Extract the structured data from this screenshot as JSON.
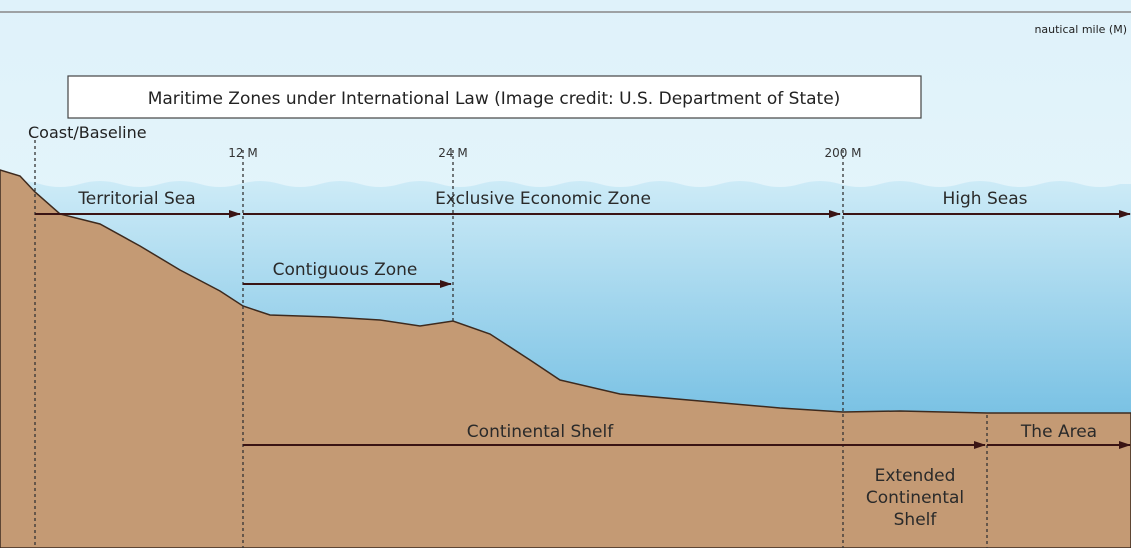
{
  "header": {
    "unit_note": "nautical mile (M)",
    "title": "Maritime Zones under International Law (Image credit: U.S. Department of State)"
  },
  "baseline_label": "Coast/Baseline",
  "distance_markers": [
    "12 M",
    "24 M",
    "200 M"
  ],
  "zones": {
    "territorial_sea": "Territorial Sea",
    "exclusive_economic_zone": "Exclusive Economic Zone",
    "high_seas": "High Seas",
    "contiguous_zone": "Contiguous Zone",
    "continental_shelf": "Continental  Shelf",
    "the_area": "The Area",
    "extended_continental_shelf": [
      "Extended",
      "Continental",
      "Shelf"
    ]
  }
}
